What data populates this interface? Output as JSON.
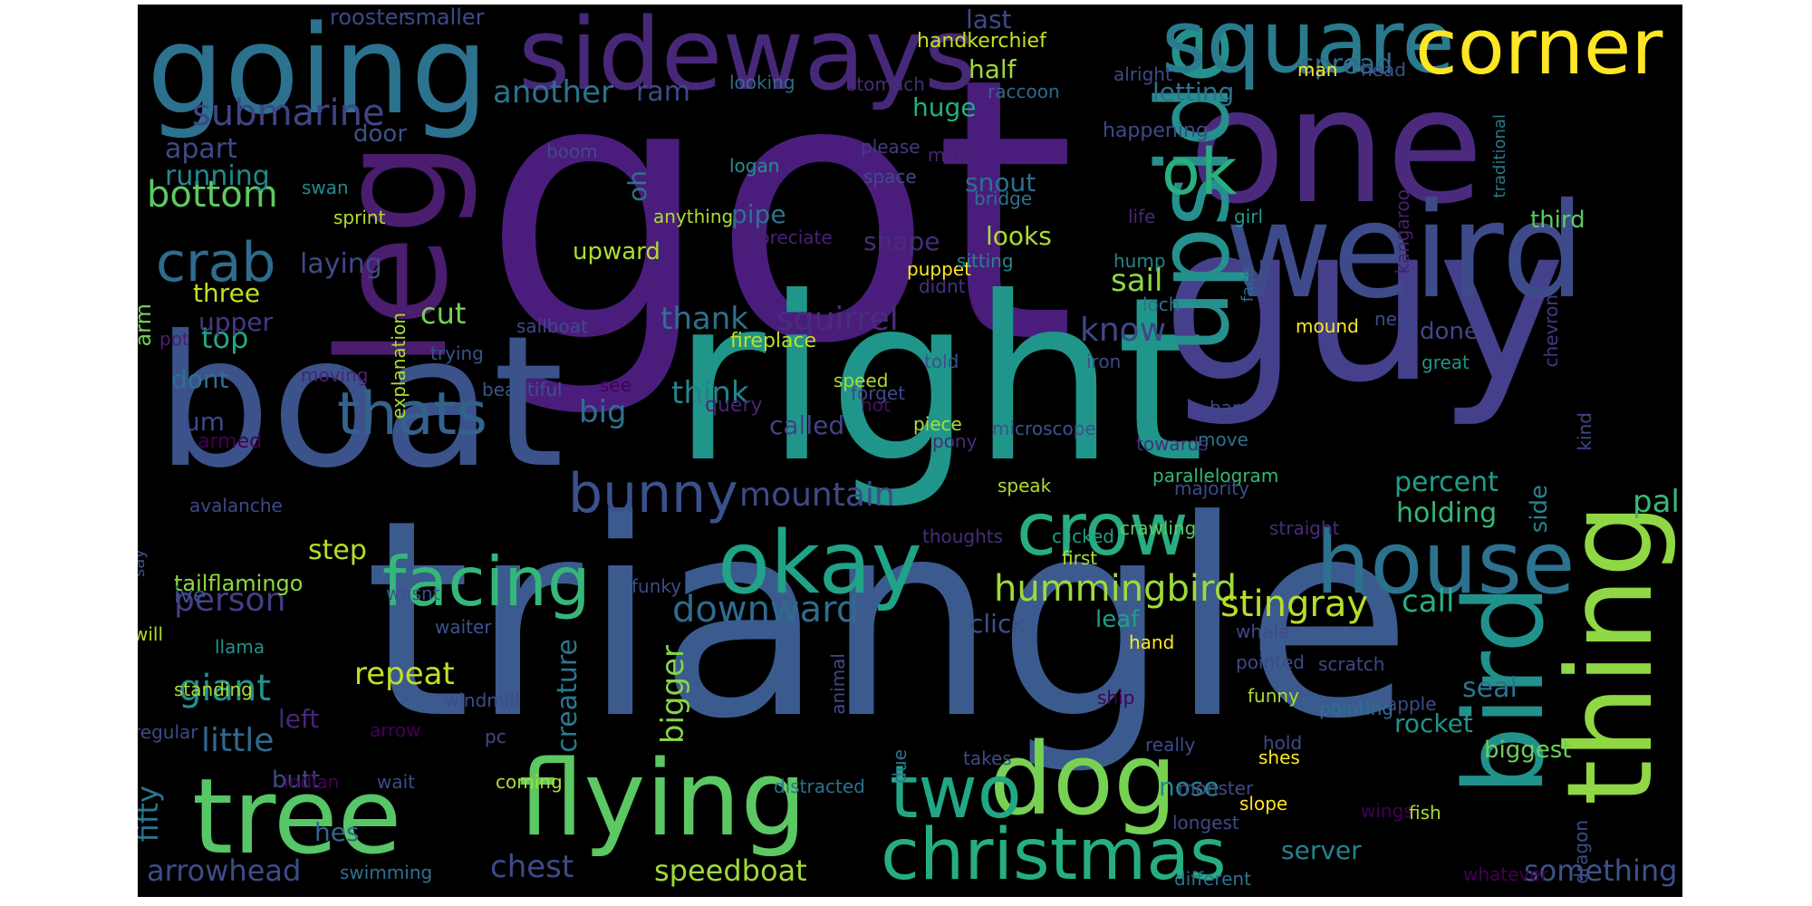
{
  "colors": {
    "background": "#000000",
    "palette": [
      "#440154",
      "#472d7b",
      "#3b528b",
      "#2c728e",
      "#21918c",
      "#28ae80",
      "#5ec962",
      "#addc30",
      "#fde725"
    ]
  },
  "words": [
    {
      "text": "got",
      "color": "#4a1d7c"
    },
    {
      "text": "triangle",
      "color": "#3b5b8f"
    },
    {
      "text": "right",
      "color": "#20968b"
    },
    {
      "text": "boat",
      "color": "#3b528b"
    },
    {
      "text": "guy",
      "color": "#45408b"
    },
    {
      "text": "one",
      "color": "#4b2a7e"
    },
    {
      "text": "weird",
      "color": "#3e4b8a"
    },
    {
      "text": "going",
      "color": "#2c728e"
    },
    {
      "text": "leg",
      "color": "#4a1d6e"
    },
    {
      "text": "sideways",
      "color": "#472878"
    },
    {
      "text": "upside",
      "color": "#25908d"
    },
    {
      "text": "square",
      "color": "#2a7a8e"
    },
    {
      "text": "corner",
      "color": "#fde725"
    },
    {
      "text": "tree",
      "color": "#56c667"
    },
    {
      "text": "flying",
      "color": "#5cc863"
    },
    {
      "text": "dog",
      "color": "#77d153"
    },
    {
      "text": "bird",
      "color": "#21918c"
    },
    {
      "text": "thing",
      "color": "#8fd744"
    },
    {
      "text": "house",
      "color": "#2c728e"
    },
    {
      "text": "okay",
      "color": "#20a387"
    },
    {
      "text": "crow",
      "color": "#27ad81"
    },
    {
      "text": "christmas",
      "color": "#26ad81"
    },
    {
      "text": "two",
      "color": "#22a785"
    },
    {
      "text": "facing",
      "color": "#35b779"
    },
    {
      "text": "thats",
      "color": "#33638d"
    },
    {
      "text": "bunny",
      "color": "#3b518b"
    },
    {
      "text": "crab",
      "color": "#2f6c8e"
    },
    {
      "text": "ok",
      "color": "#29af7f"
    },
    {
      "text": "bottom",
      "color": "#5ec962"
    },
    {
      "text": "submarine",
      "color": "#414487"
    },
    {
      "text": "hummingbird",
      "color": "#9fda3a"
    },
    {
      "text": "stingray",
      "color": "#b8de29"
    },
    {
      "text": "downward",
      "color": "#2f6b8e"
    },
    {
      "text": "arrowhead",
      "color": "#3e4c8a"
    },
    {
      "text": "speedboat",
      "color": "#a0da39"
    },
    {
      "text": "something",
      "color": "#3b528b"
    },
    {
      "text": "squirrel",
      "color": "#472d7b"
    },
    {
      "text": "mountain",
      "color": "#3e4a89"
    },
    {
      "text": "another",
      "color": "#2c728e"
    },
    {
      "text": "person",
      "color": "#433e85"
    },
    {
      "text": "giant",
      "color": "#21918c"
    },
    {
      "text": "little",
      "color": "#31688e"
    },
    {
      "text": "fifty",
      "color": "#2a788e"
    },
    {
      "text": "chest",
      "color": "#3e4a89"
    },
    {
      "text": "repeat",
      "color": "#c2df23"
    },
    {
      "text": "bigger",
      "color": "#86d549"
    },
    {
      "text": "creature",
      "color": "#2a788e"
    },
    {
      "text": "call",
      "color": "#29af7f"
    },
    {
      "text": "seal",
      "color": "#2c728e"
    },
    {
      "text": "palm",
      "color": "#38b977"
    },
    {
      "text": "percent",
      "color": "#1f9e89"
    },
    {
      "text": "holding",
      "color": "#35b779"
    },
    {
      "text": "think",
      "color": "#26828e"
    },
    {
      "text": "big",
      "color": "#2d708e"
    },
    {
      "text": "thank",
      "color": "#2c728e"
    },
    {
      "text": "know",
      "color": "#3f4788"
    },
    {
      "text": "sail",
      "color": "#8fd744"
    },
    {
      "text": "cut",
      "color": "#75d054"
    },
    {
      "text": "top",
      "color": "#21a685"
    },
    {
      "text": "laying",
      "color": "#3e4989"
    },
    {
      "text": "apart",
      "color": "#3e4989"
    },
    {
      "text": "running",
      "color": "#23888e"
    },
    {
      "text": "half",
      "color": "#9fda3a"
    },
    {
      "text": "spread",
      "color": "#31688e"
    },
    {
      "text": "letting",
      "color": "#2d708e"
    },
    {
      "text": "last",
      "color": "#3e4989"
    },
    {
      "text": "huge",
      "color": "#26ad81"
    },
    {
      "text": "ram",
      "color": "#3e4a89"
    },
    {
      "text": "door",
      "color": "#3b528b"
    },
    {
      "text": "snout",
      "color": "#2d708e"
    },
    {
      "text": "looks",
      "color": "#addc30"
    },
    {
      "text": "third",
      "color": "#5ec962"
    },
    {
      "text": "done",
      "color": "#404688"
    },
    {
      "text": "shape",
      "color": "#472d7b"
    },
    {
      "text": "pipe",
      "color": "#2c728e"
    },
    {
      "text": "upward",
      "color": "#addc30"
    },
    {
      "text": "called",
      "color": "#414487"
    },
    {
      "text": "three",
      "color": "#c2df23"
    },
    {
      "text": "upper",
      "color": "#443983"
    },
    {
      "text": "dont",
      "color": "#2c728e"
    },
    {
      "text": "um",
      "color": "#3e4a89"
    },
    {
      "text": "step",
      "color": "#b5de2b"
    },
    {
      "text": "tailflamingo",
      "color": "#8fd744"
    },
    {
      "text": "ive",
      "color": "#3b528b"
    },
    {
      "text": "left",
      "color": "#482677"
    },
    {
      "text": "hes",
      "color": "#31688e"
    },
    {
      "text": "butt",
      "color": "#3e4989"
    },
    {
      "text": "click",
      "color": "#3b528b"
    },
    {
      "text": "leaf",
      "color": "#1f9e89"
    },
    {
      "text": "nose",
      "color": "#25858e"
    },
    {
      "text": "server",
      "color": "#26828e"
    },
    {
      "text": "rocket",
      "color": "#20928c"
    },
    {
      "text": "biggest",
      "color": "#6ece58"
    },
    {
      "text": "side",
      "color": "#26828e"
    },
    {
      "text": "oh",
      "color": "#2c728e"
    },
    {
      "text": "arm",
      "color": "#6ece58"
    },
    {
      "text": "rooster",
      "color": "#3f4788"
    },
    {
      "text": "smaller",
      "color": "#3e4a89"
    },
    {
      "text": "handkerchief",
      "color": "#c8e020"
    },
    {
      "text": "looking",
      "color": "#31688e"
    },
    {
      "text": "stomach",
      "color": "#472d7b"
    },
    {
      "text": "man",
      "color": "#fde725"
    },
    {
      "text": "head",
      "color": "#3b528b"
    },
    {
      "text": "traditional",
      "color": "#2a788e"
    },
    {
      "text": "alright",
      "color": "#3e4a89"
    },
    {
      "text": "raccoon",
      "color": "#31688e"
    },
    {
      "text": "boom",
      "color": "#3e4a89"
    },
    {
      "text": "please",
      "color": "#443a83"
    },
    {
      "text": "make",
      "color": "#482475"
    },
    {
      "text": "swan",
      "color": "#23898e"
    },
    {
      "text": "logan",
      "color": "#21918c"
    },
    {
      "text": "space",
      "color": "#3e4a89"
    },
    {
      "text": "bridge",
      "color": "#2c728e"
    },
    {
      "text": "sprint",
      "color": "#b5de2b"
    },
    {
      "text": "anything",
      "color": "#addc30"
    },
    {
      "text": "life",
      "color": "#482878"
    },
    {
      "text": "girl",
      "color": "#1e9b8a"
    },
    {
      "text": "kangaroo",
      "color": "#482071"
    },
    {
      "text": "happening",
      "color": "#3e4a89"
    },
    {
      "text": "appreciate",
      "color": "#482173"
    },
    {
      "text": "didnt",
      "color": "#46337e"
    },
    {
      "text": "puppet",
      "color": "#fde725"
    },
    {
      "text": "sitting",
      "color": "#25858e"
    },
    {
      "text": "hump",
      "color": "#25858e"
    },
    {
      "text": "loch",
      "color": "#2c728e"
    },
    {
      "text": "face",
      "color": "#31688e"
    },
    {
      "text": "chevron",
      "color": "#443983"
    },
    {
      "text": "sailboat",
      "color": "#3e4a89"
    },
    {
      "text": "fireplace",
      "color": "#c2df23"
    },
    {
      "text": "told",
      "color": "#3b528b"
    },
    {
      "text": "mound",
      "color": "#fde725"
    },
    {
      "text": "ness",
      "color": "#3e4a89"
    },
    {
      "text": "pot",
      "color": "#482071"
    },
    {
      "text": "beautiful",
      "color": "#3b528b"
    },
    {
      "text": "trying",
      "color": "#3b528b"
    },
    {
      "text": "iron",
      "color": "#3e4a89"
    },
    {
      "text": "moving",
      "color": "#482475"
    },
    {
      "text": "speed",
      "color": "#addc30"
    },
    {
      "text": "forget",
      "color": "#3e4a89"
    },
    {
      "text": "see",
      "color": "#440154"
    },
    {
      "text": "query",
      "color": "#482475"
    },
    {
      "text": "hot",
      "color": "#471063"
    },
    {
      "text": "piece",
      "color": "#addc30"
    },
    {
      "text": "move",
      "color": "#2c728e"
    },
    {
      "text": "great",
      "color": "#20928c"
    },
    {
      "text": "kind",
      "color": "#3e4a89"
    },
    {
      "text": "armed",
      "color": "#440154"
    },
    {
      "text": "microscope",
      "color": "#3b528b"
    },
    {
      "text": "pony",
      "color": "#472d7b"
    },
    {
      "text": "towards",
      "color": "#472d7b"
    },
    {
      "text": "barn",
      "color": "#3e4a89"
    },
    {
      "text": "parallelogram",
      "color": "#35b779"
    },
    {
      "text": "say",
      "color": "#3b528b"
    },
    {
      "text": "avalanche",
      "color": "#3e4a89"
    },
    {
      "text": "explanation",
      "color": "#addc30"
    },
    {
      "text": "speak",
      "color": "#addc30"
    },
    {
      "text": "majority",
      "color": "#3e4a89"
    },
    {
      "text": "clicked",
      "color": "#1f9e89"
    },
    {
      "text": "crawling",
      "color": "#5ec962"
    },
    {
      "text": "straight",
      "color": "#472d7b"
    },
    {
      "text": "thoughts",
      "color": "#472d7b"
    },
    {
      "text": "first",
      "color": "#addc30"
    },
    {
      "text": "funky",
      "color": "#3e4a89"
    },
    {
      "text": "wasnt",
      "color": "#3b528b"
    },
    {
      "text": "waiter",
      "color": "#3b528b"
    },
    {
      "text": "whale",
      "color": "#3e4a89"
    },
    {
      "text": "hand",
      "color": "#fde725"
    },
    {
      "text": "pointed",
      "color": "#3e4a89"
    },
    {
      "text": "scratch",
      "color": "#3e4a89"
    },
    {
      "text": "funny",
      "color": "#addc30"
    },
    {
      "text": "apple",
      "color": "#3e4a89"
    },
    {
      "text": "will",
      "color": "#addc30"
    },
    {
      "text": "llama",
      "color": "#20928c"
    },
    {
      "text": "standing",
      "color": "#addc30"
    },
    {
      "text": "windmill",
      "color": "#3e4a89"
    },
    {
      "text": "animal",
      "color": "#3e4a89"
    },
    {
      "text": "ship",
      "color": "#440154"
    },
    {
      "text": "pointing",
      "color": "#2c728e"
    },
    {
      "text": "regular",
      "color": "#3e4a89"
    },
    {
      "text": "arrow",
      "color": "#440154"
    },
    {
      "text": "pc",
      "color": "#3e4a89"
    },
    {
      "text": "due",
      "color": "#2c728e"
    },
    {
      "text": "takes",
      "color": "#3e4a89"
    },
    {
      "text": "really",
      "color": "#3e4a89"
    },
    {
      "text": "hold",
      "color": "#3e4a89"
    },
    {
      "text": "shes",
      "color": "#fde725"
    },
    {
      "text": "indian",
      "color": "#440154"
    },
    {
      "text": "wait",
      "color": "#3e4a89"
    },
    {
      "text": "coming",
      "color": "#addc30"
    },
    {
      "text": "distracted",
      "color": "#2c728e"
    },
    {
      "text": "monster",
      "color": "#3e4a89"
    },
    {
      "text": "slope",
      "color": "#fde725"
    },
    {
      "text": "dragon",
      "color": "#3e4a89"
    },
    {
      "text": "longest",
      "color": "#3e4a89"
    },
    {
      "text": "wings",
      "color": "#440154"
    },
    {
      "text": "fish",
      "color": "#addc30"
    },
    {
      "text": "swimming",
      "color": "#2c728e"
    },
    {
      "text": "different",
      "color": "#2c728e"
    },
    {
      "text": "whatever",
      "color": "#440154"
    }
  ]
}
